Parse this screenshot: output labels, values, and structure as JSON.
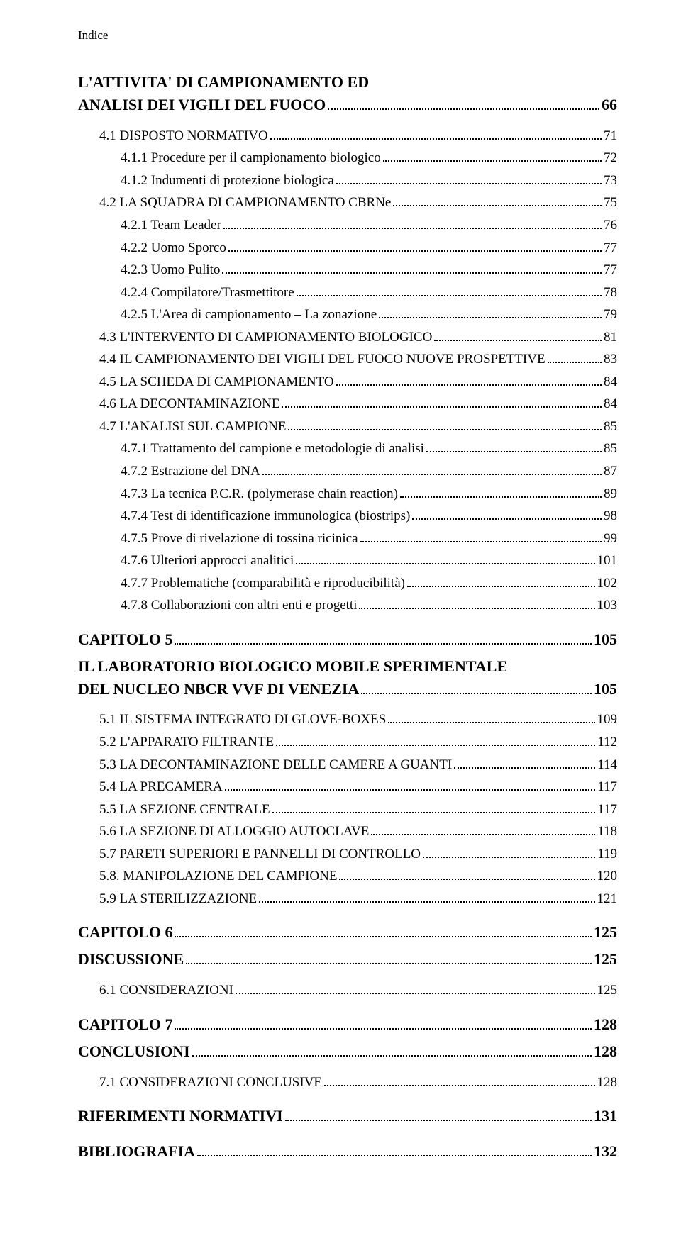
{
  "header": "Indice",
  "entries": [
    {
      "label": "L'ATTIVITA' DI CAMPIONAMENTO ED ANALISI DEI VIGILI DEL FUOCO",
      "page": "66",
      "indent": 0,
      "style": "big-title",
      "wrap": true
    },
    {
      "label": "4.1 DISPOSTO NORMATIVO",
      "page": "71",
      "indent": 1,
      "style": "sc"
    },
    {
      "label": "4.1.1 Procedure per il campionamento biologico",
      "page": "72",
      "indent": 2,
      "style": "plain"
    },
    {
      "label": "4.1.2 Indumenti di protezione biologica",
      "page": "73",
      "indent": 2,
      "style": "plain"
    },
    {
      "label": "4.2 LA SQUADRA DI CAMPIONAMENTO CBRNe",
      "page": "75",
      "indent": 1,
      "style": "sc"
    },
    {
      "label": "4.2.1 Team Leader",
      "page": "76",
      "indent": 2,
      "style": "plain"
    },
    {
      "label": "4.2.2 Uomo Sporco",
      "page": "77",
      "indent": 2,
      "style": "plain"
    },
    {
      "label": "4.2.3 Uomo Pulito",
      "page": "77",
      "indent": 2,
      "style": "plain"
    },
    {
      "label": "4.2.4 Compilatore/Trasmettitore",
      "page": "78",
      "indent": 2,
      "style": "plain"
    },
    {
      "label": "4.2.5 L'Area di campionamento – La zonazione",
      "page": "79",
      "indent": 2,
      "style": "plain"
    },
    {
      "label": "4.3 L'INTERVENTO DI CAMPIONAMENTO BIOLOGICO",
      "page": "81",
      "indent": 1,
      "style": "sc"
    },
    {
      "label": "4.4 IL CAMPIONAMENTO DEI VIGILI DEL FUOCO NUOVE PROSPETTIVE",
      "page": "83",
      "indent": 1,
      "style": "sc"
    },
    {
      "label": "4.5 LA SCHEDA DI CAMPIONAMENTO",
      "page": "84",
      "indent": 1,
      "style": "sc"
    },
    {
      "label": "4.6 LA DECONTAMINAZIONE",
      "page": "84",
      "indent": 1,
      "style": "sc"
    },
    {
      "label": "4.7 L'ANALISI SUL CAMPIONE",
      "page": "85",
      "indent": 1,
      "style": "sc"
    },
    {
      "label": "4.7.1 Trattamento del campione e metodologie di analisi",
      "page": "85",
      "indent": 2,
      "style": "plain"
    },
    {
      "label": "4.7.2 Estrazione del DNA",
      "page": "87",
      "indent": 2,
      "style": "plain"
    },
    {
      "label": "4.7.3 La tecnica P.C.R. (polymerase chain reaction)",
      "page": "89",
      "indent": 2,
      "style": "plain"
    },
    {
      "label": "4.7.4 Test di identificazione immunologica (biostrips)",
      "page": "98",
      "indent": 2,
      "style": "plain"
    },
    {
      "label": "4.7.5 Prove di rivelazione di tossina ricinica",
      "page": "99",
      "indent": 2,
      "style": "plain"
    },
    {
      "label": "4.7.6 Ulteriori approcci analitici",
      "page": "101",
      "indent": 2,
      "style": "plain"
    },
    {
      "label": "4.7.7 Problematiche (comparabilità e riproducibilità)",
      "page": "102",
      "indent": 2,
      "style": "plain"
    },
    {
      "label": "4.7.8 Collaborazioni con altri enti e progetti",
      "page": "103",
      "indent": 2,
      "style": "plain"
    },
    {
      "label": "CAPITOLO 5",
      "page": "105",
      "indent": 0,
      "style": "chapter"
    },
    {
      "label": "IL LABORATORIO BIOLOGICO MOBILE SPERIMENTALE DEL NUCLEO NBCR VVF DI VENEZIA",
      "page": "105",
      "indent": 0,
      "style": "big-title",
      "wrap": true
    },
    {
      "label": "5.1 IL SISTEMA INTEGRATO DI GLOVE-BOXES",
      "page": "109",
      "indent": 1,
      "style": "sc"
    },
    {
      "label": "5.2 L'APPARATO FILTRANTE",
      "page": "112",
      "indent": 1,
      "style": "sc"
    },
    {
      "label": "5.3 LA DECONTAMINAZIONE DELLE CAMERE A GUANTI",
      "page": "114",
      "indent": 1,
      "style": "sc"
    },
    {
      "label": "5.4 LA PRECAMERA",
      "page": "117",
      "indent": 1,
      "style": "sc"
    },
    {
      "label": "5.5 LA SEZIONE CENTRALE",
      "page": "117",
      "indent": 1,
      "style": "sc"
    },
    {
      "label": "5.6 LA SEZIONE DI ALLOGGIO AUTOCLAVE",
      "page": "118",
      "indent": 1,
      "style": "sc"
    },
    {
      "label": "5.7 PARETI SUPERIORI E PANNELLI DI CONTROLLO",
      "page": "119",
      "indent": 1,
      "style": "sc"
    },
    {
      "label": "5.8. MANIPOLAZIONE DEL CAMPIONE",
      "page": "120",
      "indent": 1,
      "style": "sc"
    },
    {
      "label": "5.9 LA STERILIZZAZIONE",
      "page": "121",
      "indent": 1,
      "style": "sc"
    },
    {
      "label": "CAPITOLO 6",
      "page": "125",
      "indent": 0,
      "style": "chapter"
    },
    {
      "label": "DISCUSSIONE",
      "page": "125",
      "indent": 0,
      "style": "big-title"
    },
    {
      "label": "6.1 CONSIDERAZIONI",
      "page": "125",
      "indent": 1,
      "style": "sc"
    },
    {
      "label": "CAPITOLO 7",
      "page": "128",
      "indent": 0,
      "style": "chapter"
    },
    {
      "label": "CONCLUSIONI",
      "page": "128",
      "indent": 0,
      "style": "big-title"
    },
    {
      "label": "7.1 CONSIDERAZIONI CONCLUSIVE",
      "page": "128",
      "indent": 1,
      "style": "sc"
    },
    {
      "label": "RIFERIMENTI NORMATIVI",
      "page": "131",
      "indent": 0,
      "style": "chapter"
    },
    {
      "label": "BIBLIOGRAFIA",
      "page": "132",
      "indent": 0,
      "style": "chapter"
    }
  ]
}
